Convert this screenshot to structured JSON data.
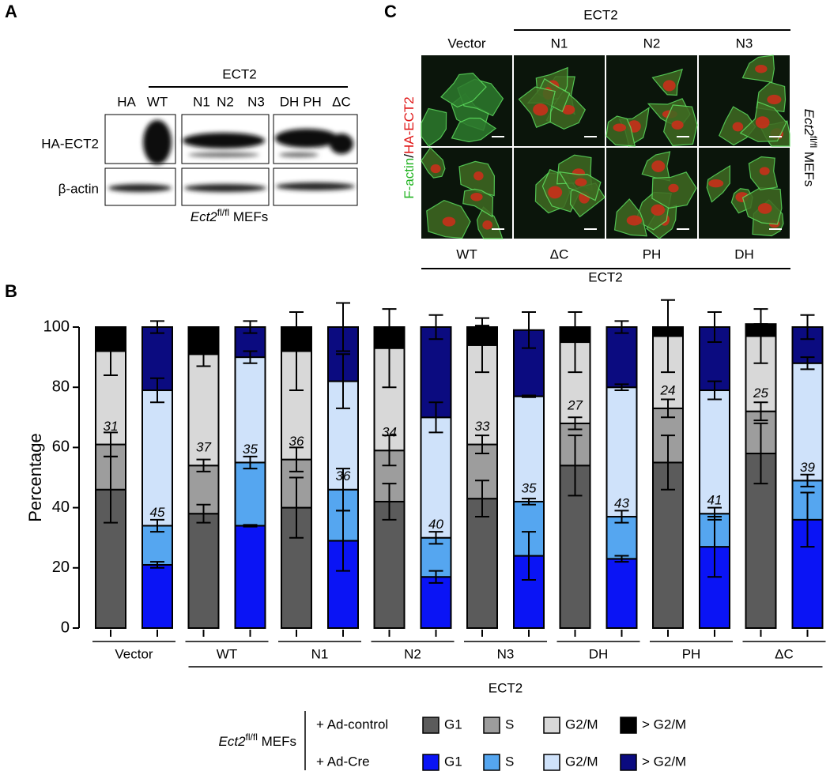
{
  "panel_labels": [
    "A",
    "B",
    "C"
  ],
  "blot": {
    "group": "ECT2",
    "lanes": [
      "HA",
      "WT",
      "N1",
      "N2",
      "N3",
      "DH",
      "PH",
      "ΔC"
    ],
    "rows": [
      "HA-ECT2",
      "β-actin"
    ],
    "caption": {
      "gene": "Ect2",
      "sup": "fl/fl",
      "rest": " MEFs"
    }
  },
  "microscopy": {
    "top_group": "ECT2",
    "top_labels": [
      "Vector",
      "N1",
      "N2",
      "N3"
    ],
    "bottom_labels": [
      "WT",
      "ΔC",
      "PH",
      "DH"
    ],
    "bottom_group": "ECT2",
    "stain_green": "F-actin",
    "separator": "/",
    "stain_red": "HA-ECT2",
    "side": {
      "gene": "Ect2",
      "sup": "fl/fl",
      "rest": " MEFs"
    }
  },
  "chart_data": {
    "type": "stacked-bar",
    "ylabel": "Percentage",
    "categories": [
      "Vector",
      "WT",
      "N1",
      "N2",
      "N3",
      "DH",
      "PH",
      "ΔC"
    ],
    "group_label": "ECT2",
    "ylim": [
      0,
      100
    ],
    "yticks": [
      0,
      20,
      40,
      60,
      80,
      100
    ],
    "legend_title": {
      "gene": "Ect2",
      "sup": "fl/fl",
      "rest": " MEFs"
    },
    "conditions": [
      {
        "name": "+ Ad-control",
        "series": [
          {
            "name": "G1",
            "color": "#5b5b5b",
            "values": [
              46,
              38,
              40,
              42,
              43,
              54,
              55,
              58
            ],
            "errors": [
              11,
              3,
              10,
              6,
              6,
              10,
              9,
              10
            ]
          },
          {
            "name": "S",
            "color": "#9d9d9d",
            "values": [
              15,
              16,
              16,
              17,
              18,
              14,
              18,
              14
            ],
            "errors": [
              4,
              2,
              4,
              5,
              3,
              2,
              3,
              3
            ]
          },
          {
            "name": "G2/M",
            "color": "#d8d8d8",
            "values": [
              31,
              37,
              36,
              34,
              33,
              27,
              24,
              25
            ],
            "errors": [
              8,
              4,
              13,
              13,
              9,
              10,
              12,
              9
            ]
          },
          {
            "name": "> G2/M",
            "color": "#000000",
            "values": [
              8,
              9,
              8,
              7,
              6,
              5,
              3,
              4
            ],
            "errors": [
              0,
              0,
              0,
              0,
              0.5,
              0,
              0,
              0
            ]
          }
        ]
      },
      {
        "name": "+ Ad-Cre",
        "series": [
          {
            "name": "G1",
            "color": "#0a14f5",
            "values": [
              21,
              34,
              29,
              17,
              24,
              23,
              27,
              36
            ],
            "errors": [
              1,
              0.3,
              10,
              2,
              8,
              1,
              10,
              9
            ]
          },
          {
            "name": "S",
            "color": "#55a6f0",
            "values": [
              13,
              21,
              17,
              13,
              18,
              14,
              11,
              13
            ],
            "errors": [
              2,
              2,
              7,
              2,
              1,
              2,
              2,
              2
            ]
          },
          {
            "name": "G2/M",
            "color": "#cfe2fa",
            "values": [
              45,
              35,
              36,
              40,
              35,
              43,
              41,
              39
            ],
            "errors": [
              4,
              2,
              9,
              5,
              0.3,
              1,
              3,
              2
            ]
          },
          {
            "name": "> G2/M",
            "color": "#0b0b80",
            "values": [
              21,
              10,
              18,
              30,
              22,
              20,
              21,
              12
            ],
            "errors": [
              2,
              2,
              8,
              4,
              6,
              2,
              5,
              4
            ]
          }
        ]
      }
    ]
  }
}
